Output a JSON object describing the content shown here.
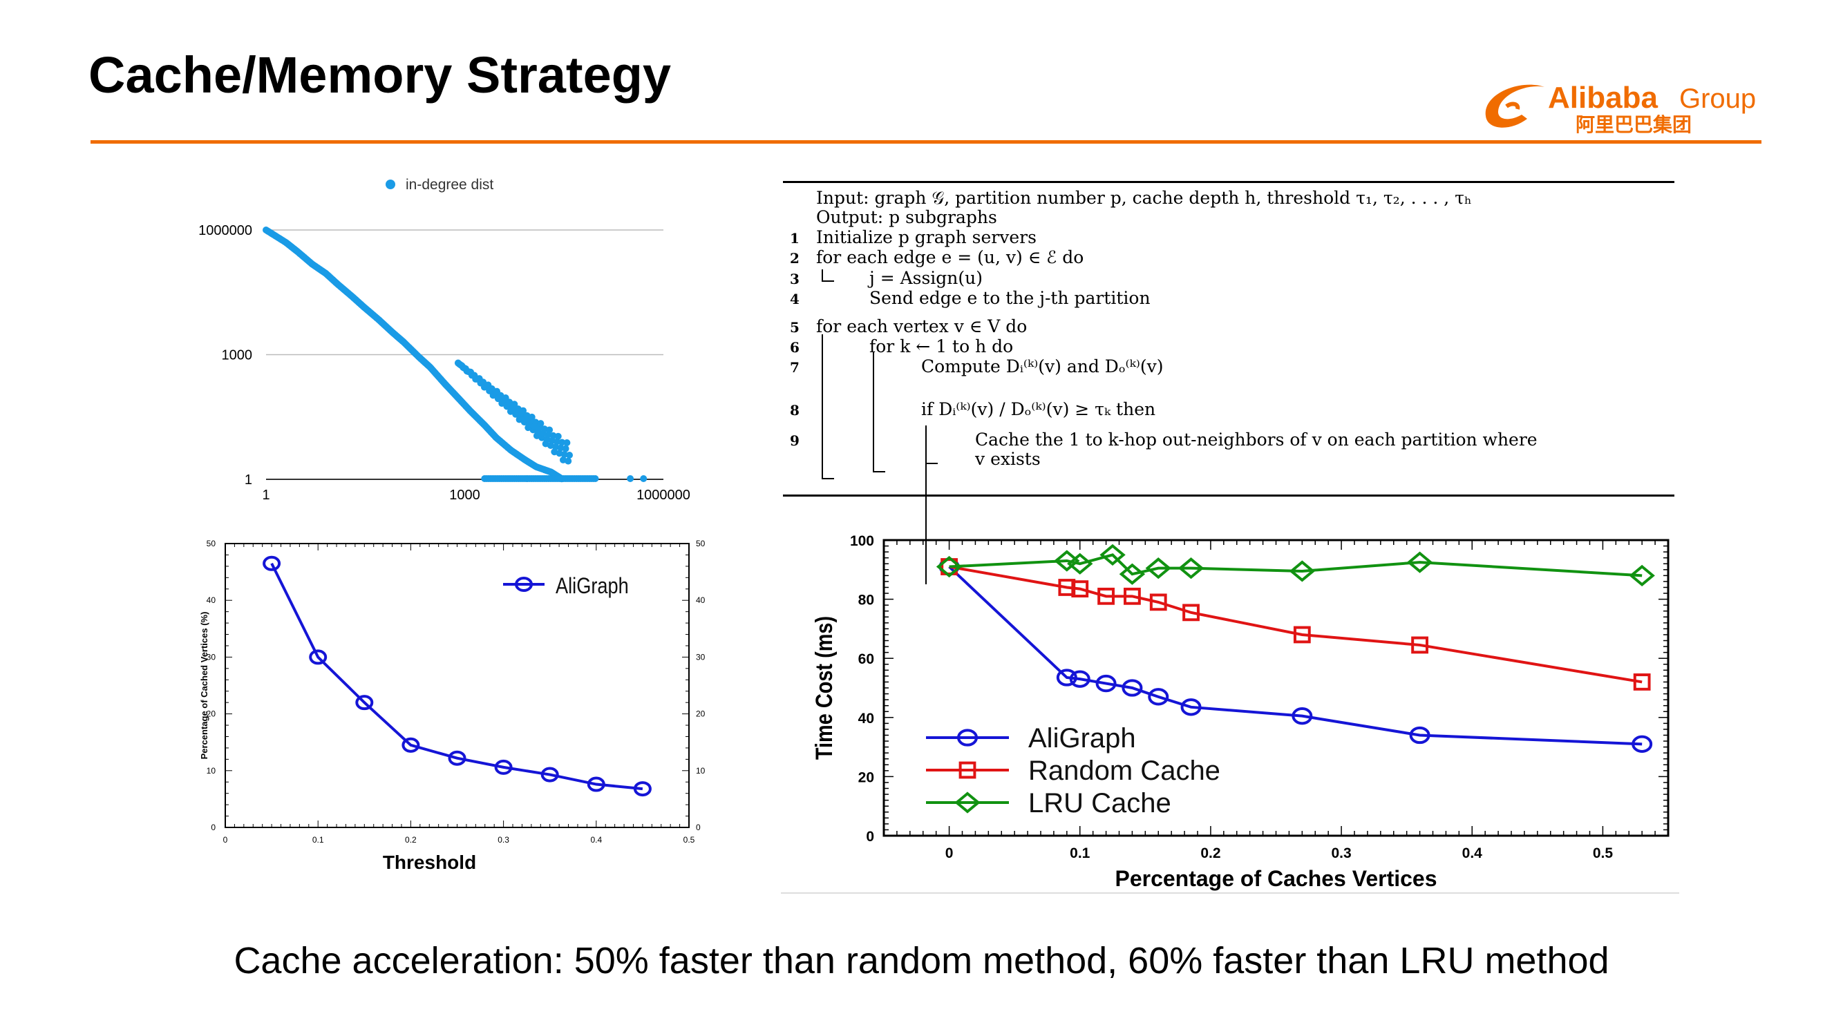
{
  "slide": {
    "title": "Cache/Memory Strategy",
    "caption": "Cache acceleration: 50% faster than random method, 60% faster than LRU method"
  },
  "logo": {
    "brand": "Alibaba",
    "suffix": "Group",
    "cn": "阿里巴巴集团",
    "color": "#f06c00"
  },
  "algorithm": {
    "lines": [
      {
        "num": "",
        "indent": 0,
        "text": "Input: graph 𝒢, partition number p, cache depth h, threshold τ₁, τ₂, . . . , τₕ"
      },
      {
        "num": "",
        "indent": 0,
        "text": "Output: p subgraphs"
      },
      {
        "num": "1",
        "indent": 0,
        "text": "Initialize p graph servers"
      },
      {
        "num": "2",
        "indent": 0,
        "text": "for each edge e = (u, v) ∈ ℰ do"
      },
      {
        "num": "3",
        "indent": 1,
        "text": "j = Assign(u)"
      },
      {
        "num": "4",
        "indent": 1,
        "text": "Send edge e to the j-th partition"
      },
      {
        "num": "5",
        "indent": 0,
        "text": "for each vertex v ∈ V do"
      },
      {
        "num": "6",
        "indent": 1,
        "text": "for k ← 1 to h do"
      },
      {
        "num": "7",
        "indent": 2,
        "text": "Compute Dᵢ⁽ᵏ⁾(v) and Dₒ⁽ᵏ⁾(v)"
      },
      {
        "num": "8",
        "indent": 2,
        "text": "if Dᵢ⁽ᵏ⁾(v) / Dₒ⁽ᵏ⁾(v) ≥ τₖ then"
      },
      {
        "num": "9",
        "indent": 3,
        "text": "Cache the 1 to k-hop out-neighbors of v on each partition where"
      },
      {
        "num": "",
        "indent": 3,
        "text": "    v exists"
      }
    ]
  },
  "chart_data": [
    {
      "id": "in-degree",
      "type": "scatter",
      "title": "",
      "legend": [
        "in-degree dist"
      ],
      "xscale": "log",
      "yscale": "log",
      "xlim": [
        1,
        1000000
      ],
      "ylim": [
        1,
        1000000
      ],
      "x_ticks": [
        "1",
        "1000",
        "1000000"
      ],
      "y_ticks": [
        "1",
        "1000",
        "1000000"
      ],
      "color": "#1a9be6",
      "series": [
        {
          "name": "in-degree dist",
          "points": [
            [
              1,
              1000000
            ],
            [
              2,
              500000
            ],
            [
              3,
              300000
            ],
            [
              5,
              150000
            ],
            [
              8,
              90000
            ],
            [
              12,
              50000
            ],
            [
              20,
              25000
            ],
            [
              30,
              14000
            ],
            [
              50,
              7000
            ],
            [
              80,
              3500
            ],
            [
              120,
              2000
            ],
            [
              200,
              900
            ],
            [
              300,
              500
            ],
            [
              500,
              200
            ],
            [
              800,
              90
            ],
            [
              1200,
              45
            ],
            [
              2000,
              20
            ],
            [
              3000,
              10
            ],
            [
              5000,
              5
            ],
            [
              8000,
              3
            ],
            [
              12000,
              2
            ],
            [
              20000,
              1.5
            ],
            [
              30000,
              1
            ]
          ]
        }
      ]
    },
    {
      "id": "threshold",
      "type": "line",
      "xlabel": "Threshold",
      "ylabel": "Percentage of Cached Vertices (%)",
      "xlim": [
        0,
        0.5
      ],
      "ylim": [
        0,
        50
      ],
      "x_ticks": [
        "0",
        "0.1",
        "0.2",
        "0.3",
        "0.4",
        "0.5"
      ],
      "y_ticks": [
        "0",
        "10",
        "20",
        "30",
        "40",
        "50"
      ],
      "series": [
        {
          "name": "AliGraph",
          "color": "#1515d6",
          "x": [
            0.05,
            0.1,
            0.15,
            0.2,
            0.25,
            0.3,
            0.35,
            0.4,
            0.45
          ],
          "y": [
            46.5,
            30,
            22,
            14.5,
            12.2,
            10.6,
            9.3,
            7.6,
            6.8
          ]
        }
      ]
    },
    {
      "id": "time-cost",
      "type": "line",
      "xlabel": "Percentage of Caches Vertices",
      "ylabel": "Time Cost (ms)",
      "xlim": [
        -0.05,
        0.55
      ],
      "ylim": [
        0,
        100
      ],
      "x_ticks": [
        "0",
        "0.1",
        "0.2",
        "0.3",
        "0.4",
        "0.5"
      ],
      "y_ticks": [
        "0",
        "20",
        "40",
        "60",
        "80",
        "100"
      ],
      "series": [
        {
          "name": "AliGraph",
          "color": "#1515d6",
          "marker": "circle",
          "x": [
            0,
            0.09,
            0.1,
            0.12,
            0.14,
            0.16,
            0.185,
            0.27,
            0.36,
            0.53
          ],
          "y": [
            91,
            53.5,
            53,
            51.5,
            50,
            47,
            43.5,
            40.5,
            34,
            31
          ]
        },
        {
          "name": "Random Cache",
          "color": "#e01414",
          "marker": "square",
          "x": [
            0,
            0.09,
            0.1,
            0.12,
            0.14,
            0.16,
            0.185,
            0.27,
            0.36,
            0.53
          ],
          "y": [
            91,
            84,
            83.5,
            81,
            81,
            79,
            75.5,
            68,
            64.5,
            52
          ]
        },
        {
          "name": "LRU Cache",
          "color": "#119211",
          "marker": "diamond",
          "x": [
            0,
            0.09,
            0.1,
            0.125,
            0.14,
            0.16,
            0.185,
            0.27,
            0.36,
            0.53
          ],
          "y": [
            91,
            93,
            92,
            95,
            88.5,
            90.5,
            90.5,
            89.5,
            92.5,
            88
          ]
        }
      ]
    }
  ]
}
